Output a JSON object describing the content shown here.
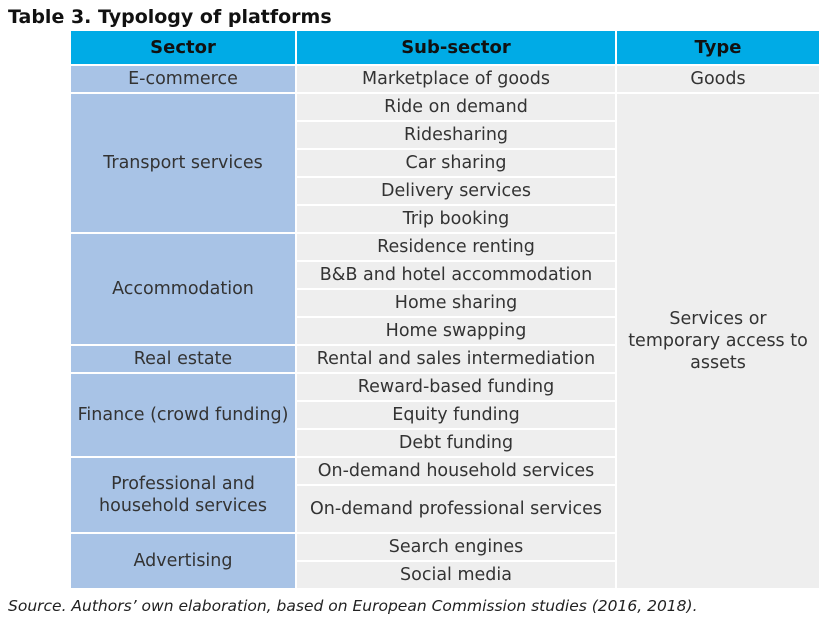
{
  "title": "Table 3. Typology of platforms",
  "headers": {
    "sector": "Sector",
    "subsector": "Sub-sector",
    "type": "Type"
  },
  "sectors": {
    "ecommerce": "E-commerce",
    "transport": "Transport services",
    "accommodation": "Accommodation",
    "realestate": "Real estate",
    "finance": "Finance (crowd funding)",
    "professional": "Professional and household services",
    "advertising": "Advertising"
  },
  "subsectors": [
    "Marketplace of goods",
    "Ride on demand",
    "Ridesharing",
    "Car sharing",
    "Delivery services",
    "Trip booking",
    "Residence renting",
    "B&B and hotel accommodation",
    "Home sharing",
    "Home swapping",
    "Rental and sales intermediation",
    "Reward-based funding",
    "Equity funding",
    "Debt funding",
    "On-demand household services",
    "On-demand professional services",
    "Search engines",
    "Social media"
  ],
  "types": {
    "goods": "Goods",
    "services": "Services or temporary access to assets"
  },
  "source": "Source. Authors’ own elaboration, based on European Commission studies (2016, 2018).",
  "colors": {
    "header": "#00abe6",
    "sector_cell": "#a8c3e6",
    "body_cell": "#eeeeee"
  }
}
